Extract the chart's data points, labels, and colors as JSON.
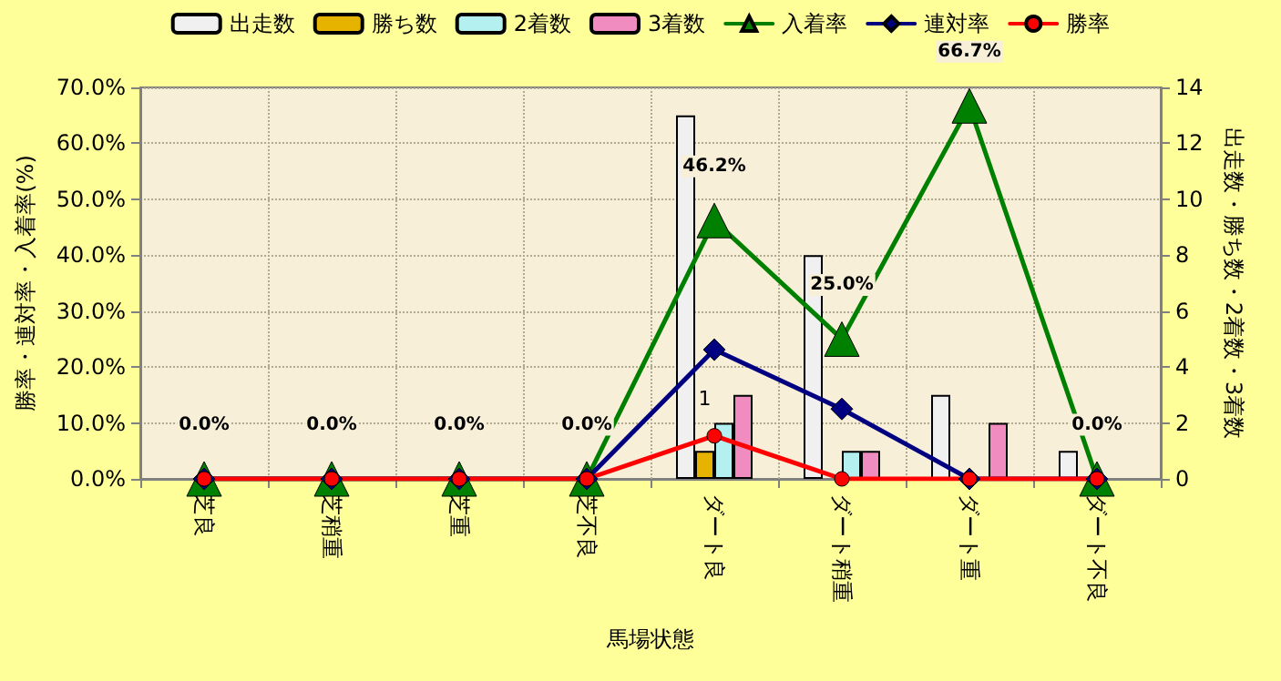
{
  "chart_data": {
    "type": "bar",
    "xlabel": "馬場状態",
    "ylabel": "勝率・連対率・入着率(%)",
    "y2label": "出走数・勝ち数・2着数・3着数",
    "categories": [
      "芝良",
      "芝稍重",
      "芝重",
      "芝不良",
      "ダート良",
      "ダート稍重",
      "ダート重",
      "ダート不良"
    ],
    "series": [
      {
        "name": "出走数",
        "axis": "y2",
        "color": "#f0f0f0",
        "values": [
          null,
          null,
          null,
          null,
          13,
          8,
          3,
          1
        ]
      },
      {
        "name": "勝ち数",
        "axis": "y2",
        "color": "#e6b400",
        "values": [
          null,
          null,
          null,
          null,
          1,
          null,
          null,
          null
        ],
        "value_labels": [
          null,
          null,
          null,
          null,
          "1",
          null,
          null,
          null
        ]
      },
      {
        "name": "2着数",
        "axis": "y2",
        "color": "#b4f0f0",
        "values": [
          null,
          null,
          null,
          null,
          2,
          1,
          null,
          null
        ]
      },
      {
        "name": "3着数",
        "axis": "y2",
        "color": "#f08cc0",
        "values": [
          null,
          null,
          null,
          null,
          3,
          1,
          2,
          null
        ]
      },
      {
        "name": "入着率",
        "type": "line",
        "marker": "triangle",
        "color": "#008000",
        "values": [
          0,
          0,
          0,
          0,
          46.2,
          25.0,
          66.7,
          0
        ],
        "value_labels": [
          "0.0%",
          "0.0%",
          "0.0%",
          "0.0%",
          "46.2%",
          "25.0%",
          "66.7%",
          "0.0%"
        ]
      },
      {
        "name": "連対率",
        "type": "line",
        "marker": "diamond",
        "color": "#000080",
        "values": [
          0,
          0,
          0,
          0,
          23.1,
          12.5,
          0,
          0
        ]
      },
      {
        "name": "勝率",
        "type": "line",
        "marker": "circle",
        "color": "#ff0000",
        "values": [
          0,
          0,
          0,
          0,
          7.7,
          0,
          0,
          0
        ]
      }
    ],
    "ylim": [
      0,
      70
    ],
    "yticks": [
      {
        "value": 0,
        "label": "0.0%"
      },
      {
        "value": 10,
        "label": "10.0%"
      },
      {
        "value": 20,
        "label": "20.0%"
      },
      {
        "value": 30,
        "label": "30.0%"
      },
      {
        "value": 40,
        "label": "40.0%"
      },
      {
        "value": 50,
        "label": "50.0%"
      },
      {
        "value": 60,
        "label": "60.0%"
      },
      {
        "value": 70,
        "label": "70.0%"
      }
    ],
    "y2lim": [
      0,
      14
    ],
    "y2ticks": [
      0,
      2,
      4,
      6,
      8,
      10,
      12,
      14
    ],
    "grid": true,
    "legend": "top"
  }
}
